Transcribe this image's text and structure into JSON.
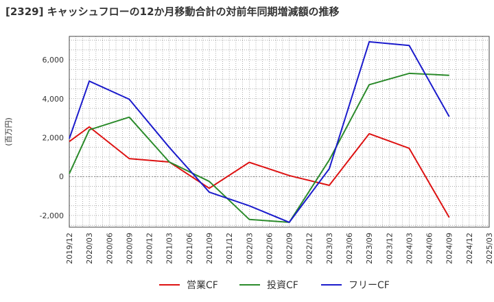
{
  "title": "[2329]  キャッシュフローの12か月移動合計の対前年同期増減額の推移",
  "chart_data": {
    "type": "line",
    "title": "[2329]  キャッシュフローの12か月移動合計の対前年同期増減額の推移",
    "xlabel": "",
    "ylabel": "(百万円)",
    "x_ticks": [
      "2019/12",
      "2020/03",
      "2020/06",
      "2020/09",
      "2020/12",
      "2021/03",
      "2021/06",
      "2021/09",
      "2021/12",
      "2022/03",
      "2022/06",
      "2022/09",
      "2022/12",
      "2023/03",
      "2023/06",
      "2023/09",
      "2023/12",
      "2024/03",
      "2024/06",
      "2024/09",
      "2024/12",
      "2025/03"
    ],
    "y_ticks": [
      -2000,
      0,
      2000,
      4000,
      6000
    ],
    "y_tick_labels": [
      "-2,000",
      "0",
      "2,000",
      "4,000",
      "6,000"
    ],
    "ylim": [
      -2600,
      7200
    ],
    "grid": true,
    "legend_position": "bottom",
    "series": [
      {
        "name": "営業CF",
        "color": "#dd1111",
        "points": [
          [
            "2019/12",
            1800
          ],
          [
            "2020/03",
            2550
          ],
          [
            "2020/09",
            920
          ],
          [
            "2021/03",
            750
          ],
          [
            "2021/09",
            -600
          ],
          [
            "2022/03",
            730
          ],
          [
            "2022/09",
            50
          ],
          [
            "2023/03",
            -450
          ],
          [
            "2023/09",
            2200
          ],
          [
            "2024/03",
            1450
          ],
          [
            "2024/09",
            -2100
          ]
        ]
      },
      {
        "name": "投資CF",
        "color": "#2a8a2a",
        "points": [
          [
            "2019/12",
            150
          ],
          [
            "2020/03",
            2400
          ],
          [
            "2020/09",
            3050
          ],
          [
            "2021/03",
            750
          ],
          [
            "2021/09",
            -250
          ],
          [
            "2022/03",
            -2200
          ],
          [
            "2022/09",
            -2350
          ],
          [
            "2023/03",
            850
          ],
          [
            "2023/09",
            4720
          ],
          [
            "2024/03",
            5300
          ],
          [
            "2024/09",
            5200
          ]
        ]
      },
      {
        "name": "フリーCF",
        "color": "#1a1acc",
        "points": [
          [
            "2019/12",
            1950
          ],
          [
            "2020/03",
            4900
          ],
          [
            "2020/09",
            3970
          ],
          [
            "2021/03",
            1500
          ],
          [
            "2021/09",
            -800
          ],
          [
            "2022/03",
            -1500
          ],
          [
            "2022/09",
            -2350
          ],
          [
            "2023/03",
            400
          ],
          [
            "2023/09",
            6920
          ],
          [
            "2024/03",
            6730
          ],
          [
            "2024/09",
            3080
          ]
        ]
      }
    ]
  }
}
